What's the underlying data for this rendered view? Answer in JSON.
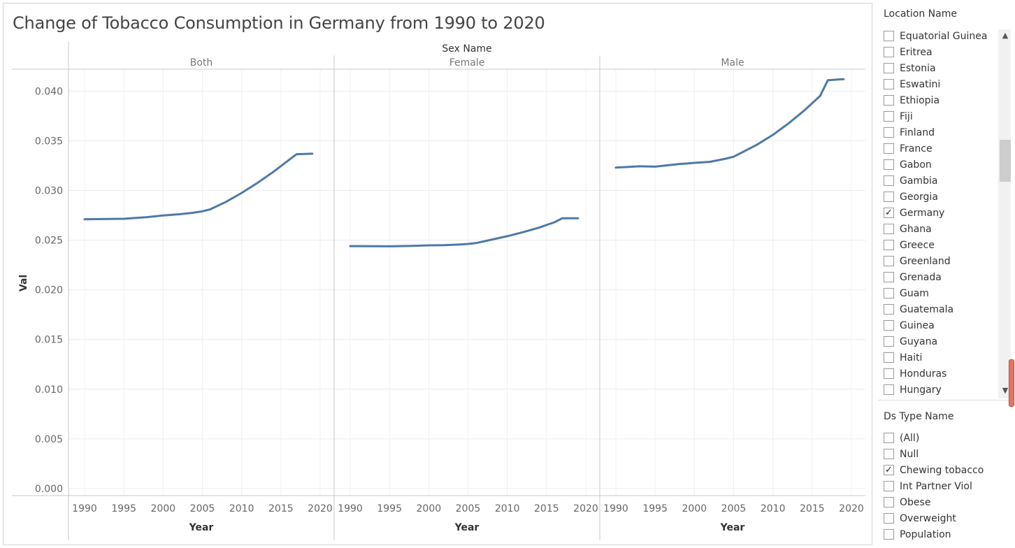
{
  "title": "Change of Tobacco Consumption in Germany from 1990 to 2020",
  "chart_data": {
    "type": "line",
    "title": "Change of Tobacco Consumption in Germany from 1990 to 2020",
    "column_header": "Sex Name",
    "xlabel": "Year",
    "ylabel": "Val",
    "x_ticks": [
      1990,
      1995,
      2000,
      2005,
      2010,
      2015,
      2020
    ],
    "y_ticks": [
      "0.000",
      "0.005",
      "0.010",
      "0.015",
      "0.020",
      "0.025",
      "0.030",
      "0.035",
      "0.040"
    ],
    "xlim": [
      1990,
      2020
    ],
    "ylim": [
      0,
      0.0415
    ],
    "grid": true,
    "line_color": "#4e79a7",
    "panels": [
      {
        "name": "Both",
        "x": [
          1990,
          1993,
          1995,
          1998,
          2000,
          2002,
          2004,
          2005,
          2006,
          2008,
          2010,
          2012,
          2014,
          2016,
          2017,
          2019
        ],
        "values": [
          0.0271,
          0.02713,
          0.02715,
          0.02732,
          0.02748,
          0.0276,
          0.02778,
          0.0279,
          0.0281,
          0.02885,
          0.02975,
          0.03075,
          0.03185,
          0.03305,
          0.03365,
          0.0337
        ]
      },
      {
        "name": "Female",
        "x": [
          1990,
          1993,
          1995,
          1998,
          2000,
          2002,
          2004,
          2005,
          2006,
          2008,
          2010,
          2012,
          2014,
          2016,
          2017,
          2019
        ],
        "values": [
          0.0244,
          0.02439,
          0.02438,
          0.02443,
          0.02448,
          0.0245,
          0.02457,
          0.02462,
          0.0247,
          0.02505,
          0.0254,
          0.0258,
          0.02625,
          0.0268,
          0.0272,
          0.0272
        ]
      },
      {
        "name": "Male",
        "x": [
          1990,
          1993,
          1995,
          1998,
          2000,
          2002,
          2004,
          2005,
          2006,
          2008,
          2010,
          2012,
          2014,
          2016,
          2017,
          2019
        ],
        "values": [
          0.0323,
          0.03243,
          0.0324,
          0.03265,
          0.03278,
          0.03288,
          0.0332,
          0.0334,
          0.0338,
          0.03462,
          0.0356,
          0.03675,
          0.03805,
          0.0395,
          0.0411,
          0.0412
        ]
      }
    ]
  },
  "filters": {
    "location": {
      "title": "Location Name",
      "items": [
        {
          "label": "Equatorial Guinea",
          "checked": false
        },
        {
          "label": "Eritrea",
          "checked": false
        },
        {
          "label": "Estonia",
          "checked": false
        },
        {
          "label": "Eswatini",
          "checked": false
        },
        {
          "label": "Ethiopia",
          "checked": false
        },
        {
          "label": "Fiji",
          "checked": false
        },
        {
          "label": "Finland",
          "checked": false
        },
        {
          "label": "France",
          "checked": false
        },
        {
          "label": "Gabon",
          "checked": false
        },
        {
          "label": "Gambia",
          "checked": false
        },
        {
          "label": "Georgia",
          "checked": false
        },
        {
          "label": "Germany",
          "checked": true
        },
        {
          "label": "Ghana",
          "checked": false
        },
        {
          "label": "Greece",
          "checked": false
        },
        {
          "label": "Greenland",
          "checked": false
        },
        {
          "label": "Grenada",
          "checked": false
        },
        {
          "label": "Guam",
          "checked": false
        },
        {
          "label": "Guatemala",
          "checked": false
        },
        {
          "label": "Guinea",
          "checked": false
        },
        {
          "label": "Guyana",
          "checked": false
        },
        {
          "label": "Haiti",
          "checked": false
        },
        {
          "label": "Honduras",
          "checked": false
        },
        {
          "label": "Hungary",
          "checked": false
        }
      ]
    },
    "ds_type": {
      "title": "Ds Type Name",
      "items": [
        {
          "label": "(All)",
          "checked": false
        },
        {
          "label": "Null",
          "checked": false
        },
        {
          "label": "Chewing tobacco",
          "checked": true
        },
        {
          "label": "Int Partner Viol",
          "checked": false
        },
        {
          "label": "Obese",
          "checked": false
        },
        {
          "label": "Overweight",
          "checked": false
        },
        {
          "label": "Population",
          "checked": false
        }
      ]
    }
  },
  "icons": {
    "scroll_up": "chevron-up-icon",
    "scroll_down": "chevron-down-icon",
    "check": "check-icon"
  }
}
